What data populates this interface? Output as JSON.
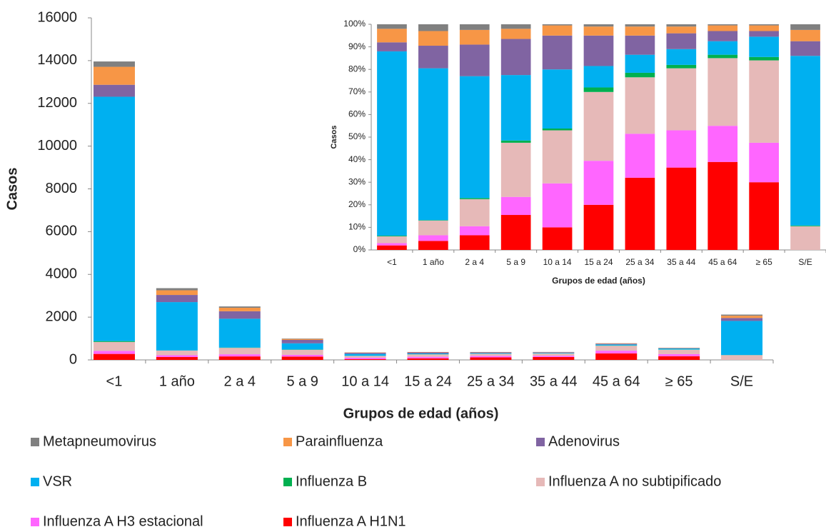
{
  "chart_data": [
    {
      "type": "stacked_bar",
      "y_label": "Casos",
      "x_label": "Grupos de edad (años)",
      "categories": [
        "<1",
        "1 año",
        "2 a 4",
        "5 a 9",
        "10 a 14",
        "15 a 24",
        "25 a 34",
        "35 a 44",
        "45 a 64",
        "≥ 65",
        "S/E"
      ],
      "ylim": [
        0,
        16000
      ],
      "yticks": [
        0,
        2000,
        4000,
        6000,
        8000,
        10000,
        12000,
        14000,
        16000
      ],
      "legend": "bottom",
      "series": [
        {
          "name": "Metapneumovirus",
          "color": "#808080",
          "values": [
            250,
            100,
            62,
            20,
            2,
            4,
            4,
            4,
            4,
            3,
            53
          ]
        },
        {
          "name": "Parainfluenza",
          "color": "#f79646",
          "values": [
            840,
            218,
            163,
            45,
            16,
            15,
            15,
            11,
            20,
            14,
            106
          ]
        },
        {
          "name": "Adenovirus",
          "color": "#8064a2",
          "values": [
            560,
            335,
            350,
            160,
            53,
            50,
            31,
            26,
            35,
            14,
            138
          ]
        },
        {
          "name": "VSR",
          "color": "#00b0f0",
          "values": [
            11430,
            2260,
            1350,
            290,
            92,
            35,
            30,
            26,
            47,
            51,
            1594
          ]
        },
        {
          "name": "Influenza B",
          "color": "#00b050",
          "values": [
            40,
            7,
            13,
            10,
            3,
            7,
            7,
            6,
            12,
            9,
            6
          ]
        },
        {
          "name": "Influenza A no subtipificado",
          "color": "#e6b9b8",
          "values": [
            420,
            218,
            300,
            240,
            82,
            113,
            93,
            102,
            234,
            208,
            223
          ]
        },
        {
          "name": "Influenza A H3 estacional",
          "color": "#ff66ff",
          "values": [
            140,
            84,
            100,
            80,
            68,
            72,
            72,
            61,
            125,
            100,
            0
          ]
        },
        {
          "name": "Influenza A H1N1",
          "color": "#ff0000",
          "values": [
            280,
            134,
            163,
            155,
            35,
            74,
            118,
            135,
            304,
            171,
            0
          ]
        }
      ]
    },
    {
      "type": "stacked_bar",
      "y_label": "Casos",
      "x_label": "Grupos de edad (años)",
      "categories": [
        "<1",
        "1 año",
        "2 a 4",
        "5 a 9",
        "10 a 14",
        "15 a 24",
        "25 a 34",
        "35 a 44",
        "45 a 64",
        "≥ 65",
        "S/E"
      ],
      "ylim": [
        0,
        100
      ],
      "yticks": [
        {
          "value": 0,
          "label": "0%"
        },
        {
          "value": 10,
          "label": "10%"
        },
        {
          "value": 20,
          "label": "20%"
        },
        {
          "value": 30,
          "label": "30%"
        },
        {
          "value": 40,
          "label": "40%"
        },
        {
          "value": 50,
          "label": "50%"
        },
        {
          "value": 60,
          "label": "60%"
        },
        {
          "value": 70,
          "label": "70%"
        },
        {
          "value": 80,
          "label": "80%"
        },
        {
          "value": 90,
          "label": "90%"
        },
        {
          "value": 100,
          "label": "100%"
        }
      ],
      "series": [
        {
          "color": "#808080",
          "values": [
            2,
            3,
            2.5,
            2,
            0.5,
            1,
            1,
            1,
            0.5,
            0.5,
            2.5
          ]
        },
        {
          "color": "#f79646",
          "values": [
            6,
            6.5,
            6.5,
            4.5,
            4.5,
            4,
            4,
            3,
            2.5,
            2.5,
            5
          ]
        },
        {
          "color": "#8064a2",
          "values": [
            4,
            10,
            14,
            16,
            15,
            13.5,
            8.5,
            7,
            4.5,
            2.5,
            6.5
          ]
        },
        {
          "color": "#00b0f0",
          "values": [
            81.7,
            67.3,
            54,
            29,
            26.2,
            9.5,
            8,
            7,
            6,
            9,
            75.2
          ]
        },
        {
          "color": "#00b050",
          "values": [
            0.3,
            0.2,
            0.5,
            1,
            0.8,
            2,
            2,
            1.5,
            1.5,
            1.5,
            0.3
          ]
        },
        {
          "color": "#e6b9b8",
          "values": [
            3,
            6.5,
            12,
            24,
            23.5,
            30.5,
            25,
            27.5,
            30,
            36.5,
            10.5
          ]
        },
        {
          "color": "#ff66ff",
          "values": [
            1,
            2.5,
            4,
            8,
            19.5,
            19.5,
            19.5,
            16.5,
            16,
            17.5,
            0
          ]
        },
        {
          "color": "#ff0000",
          "values": [
            2,
            4,
            6.5,
            15.5,
            10,
            20,
            32,
            36.5,
            39,
            30,
            0
          ]
        }
      ]
    }
  ]
}
